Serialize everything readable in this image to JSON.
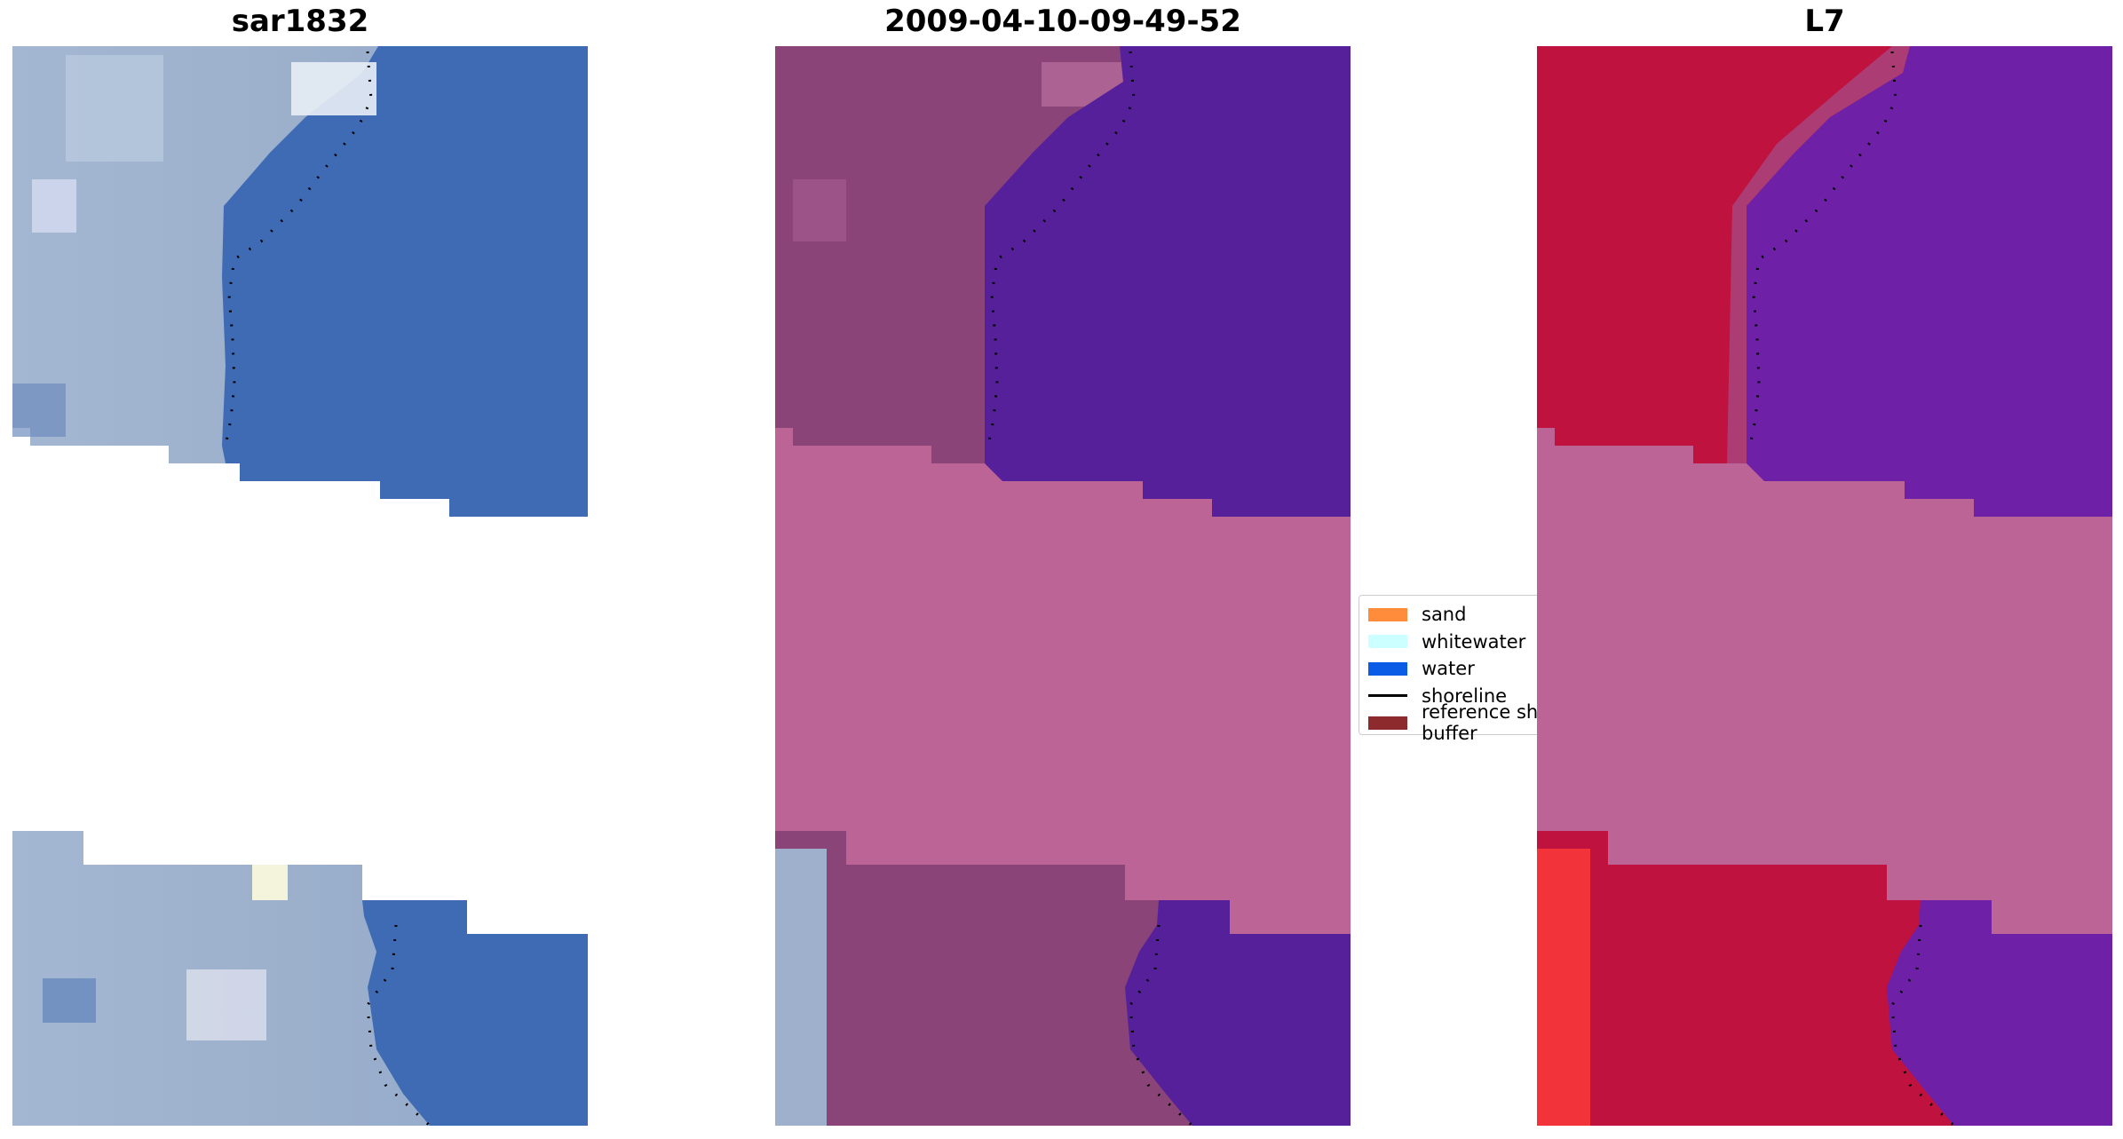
{
  "panels": [
    {
      "title": "sar1832"
    },
    {
      "title": "2009-04-10-09-49-52"
    },
    {
      "title": "L7"
    }
  ],
  "legend": {
    "items": [
      {
        "label": "sand",
        "color": "#FF8C3A",
        "kind": "patch"
      },
      {
        "label": "whitewater",
        "color": "#CCFFFF",
        "kind": "patch"
      },
      {
        "label": "water",
        "color": "#0A5CE6",
        "kind": "patch"
      },
      {
        "label": "shoreline",
        "color": "#000000",
        "kind": "line"
      },
      {
        "label": "reference shoreline buffer",
        "color": "#8C2A2E",
        "kind": "patch"
      }
    ]
  },
  "colors": {
    "rgb_land": "#9FB0CC",
    "rgb_water": "#3E6BB4",
    "classified_land": "#8A4478",
    "classified_water": "#56209A",
    "reference_buffer": "#BC6496",
    "ndwi_land": "#C0123E",
    "ndwi_water": "#6E20A6"
  }
}
